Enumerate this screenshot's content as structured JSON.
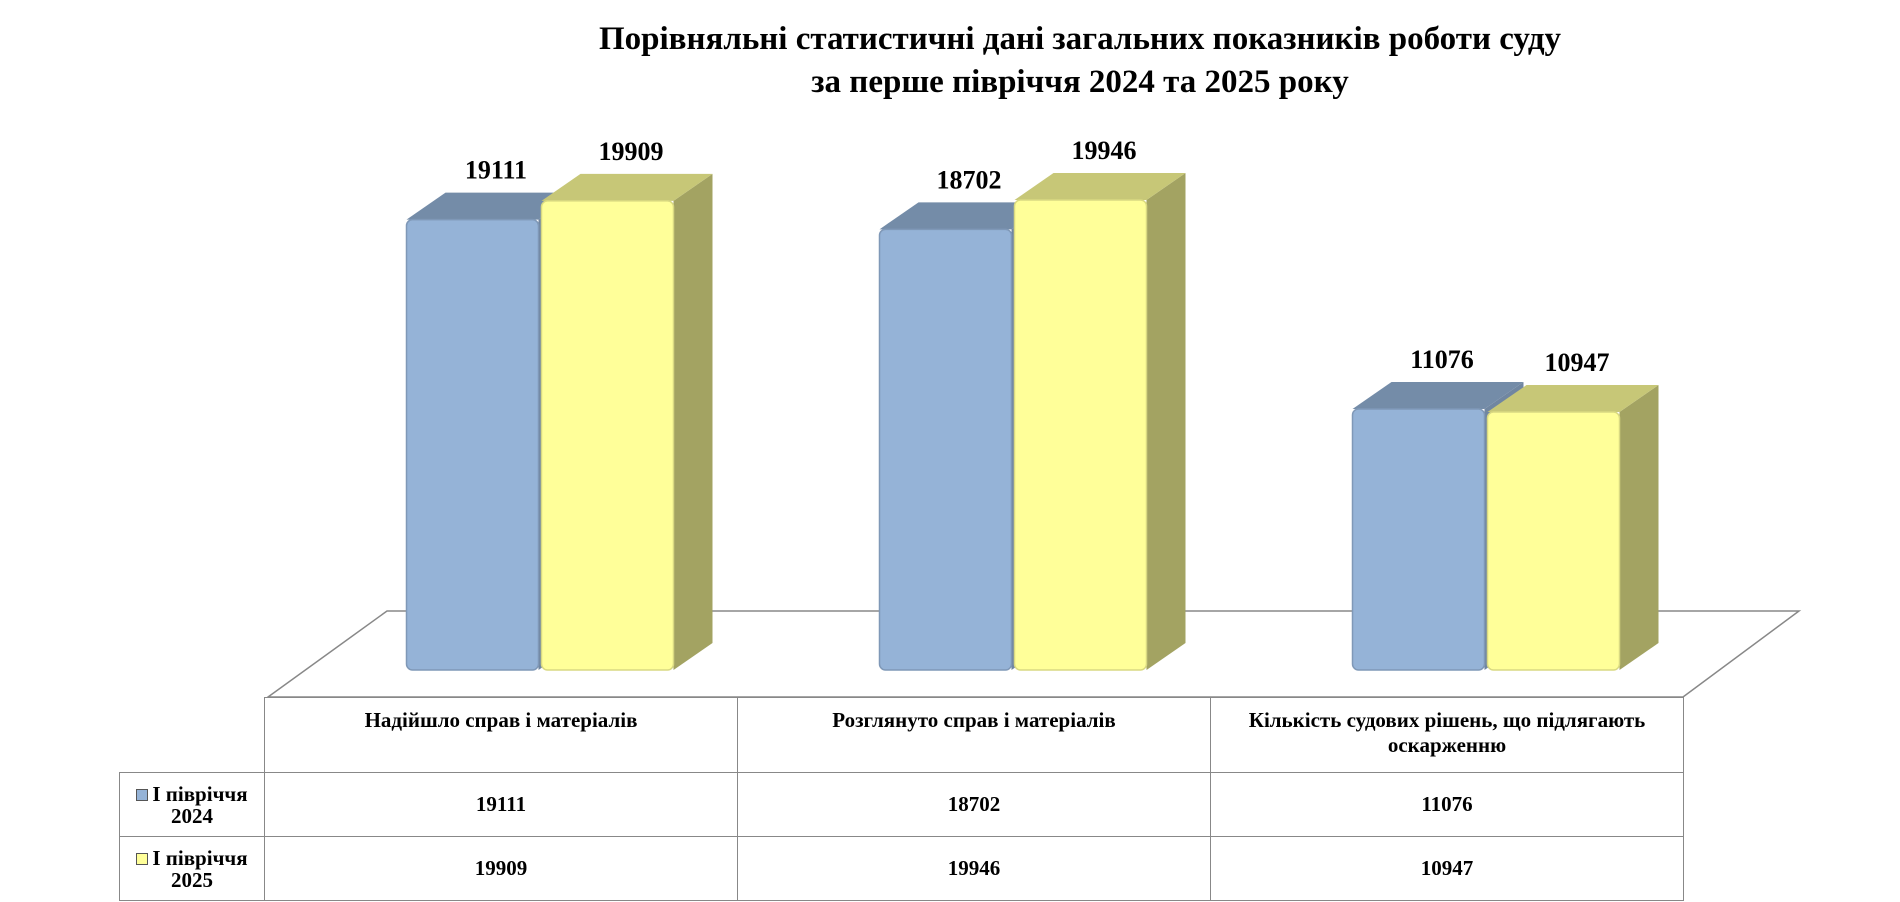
{
  "chart_data": {
    "type": "bar3d",
    "title": "Порівняльні статистичні дані загальних показників роботи суду\nза перше півріччя 2024 та 2025 року",
    "categories": [
      "Надійшло справ і матеріалів",
      "Розглянуто справ і матеріалів",
      "Кількість судових рішень, що підлягають оскарженню"
    ],
    "series": [
      {
        "name": "І півріччя 2024",
        "color": "#95b3d7",
        "values": [
          19111,
          18702,
          11076
        ]
      },
      {
        "name": "І півріччя 2025",
        "color": "#ffff99",
        "values": [
          19909,
          19946,
          10947
        ]
      }
    ]
  }
}
